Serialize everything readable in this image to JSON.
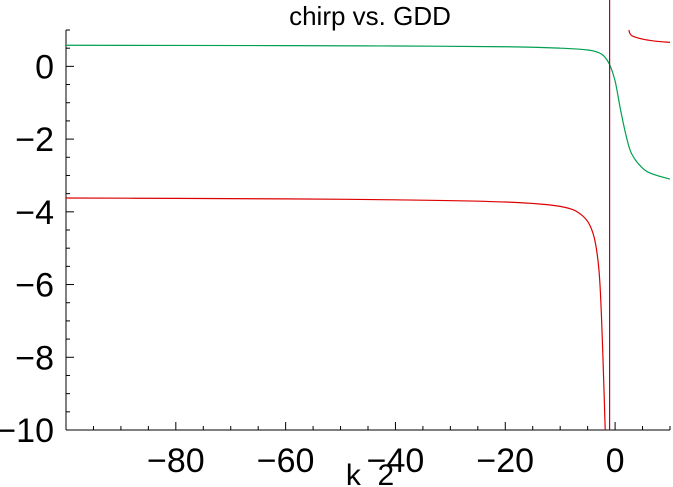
{
  "chart_data": {
    "type": "line",
    "title": "chirp vs. GDD",
    "xlabel": "k_2",
    "ylabel": "",
    "xlim": [
      -100,
      10
    ],
    "ylim": [
      -10,
      1
    ],
    "grid": false,
    "legend": "none",
    "x_ticks": [
      -80,
      -60,
      -40,
      -20,
      0
    ],
    "x_tick_labels": [
      "−80",
      "−60",
      "−40",
      "−20",
      "0"
    ],
    "y_ticks": [
      0,
      -2,
      -4,
      -6,
      -8,
      -10
    ],
    "y_tick_labels": [
      "0",
      "−2",
      "−4",
      "−6",
      "−8",
      "−10"
    ],
    "asymptote_x": -1,
    "series": [
      {
        "color": "#dd0000",
        "segments": [
          [
            [
              -100,
              -3.62
            ],
            [
              -80,
              -3.63
            ],
            [
              -60,
              -3.645
            ],
            [
              -40,
              -3.67
            ],
            [
              -20,
              -3.73
            ],
            [
              -10,
              -3.85
            ],
            [
              -6,
              -4.1
            ],
            [
              -4,
              -4.6
            ],
            [
              -3,
              -5.5
            ],
            [
              -2.5,
              -6.8
            ],
            [
              -2,
              -9.0
            ],
            [
              -1.8,
              -10
            ]
          ],
          [
            [
              2.5,
              1
            ],
            [
              3,
              0.85
            ],
            [
              5,
              0.75
            ],
            [
              7,
              0.7
            ],
            [
              10,
              0.66
            ]
          ]
        ]
      },
      {
        "color": "#00a050",
        "segments": [
          [
            [
              -100,
              0.58
            ],
            [
              -60,
              0.57
            ],
            [
              -40,
              0.56
            ],
            [
              -20,
              0.54
            ],
            [
              -10,
              0.5
            ],
            [
              -5,
              0.45
            ],
            [
              -3,
              0.38
            ],
            [
              -2,
              0.28
            ],
            [
              -1,
              0.05
            ],
            [
              0,
              -0.4
            ],
            [
              1,
              -1.2
            ],
            [
              2,
              -1.9
            ],
            [
              3,
              -2.4
            ],
            [
              5,
              -2.8
            ],
            [
              7,
              -2.97
            ],
            [
              10,
              -3.1
            ]
          ]
        ]
      }
    ]
  }
}
